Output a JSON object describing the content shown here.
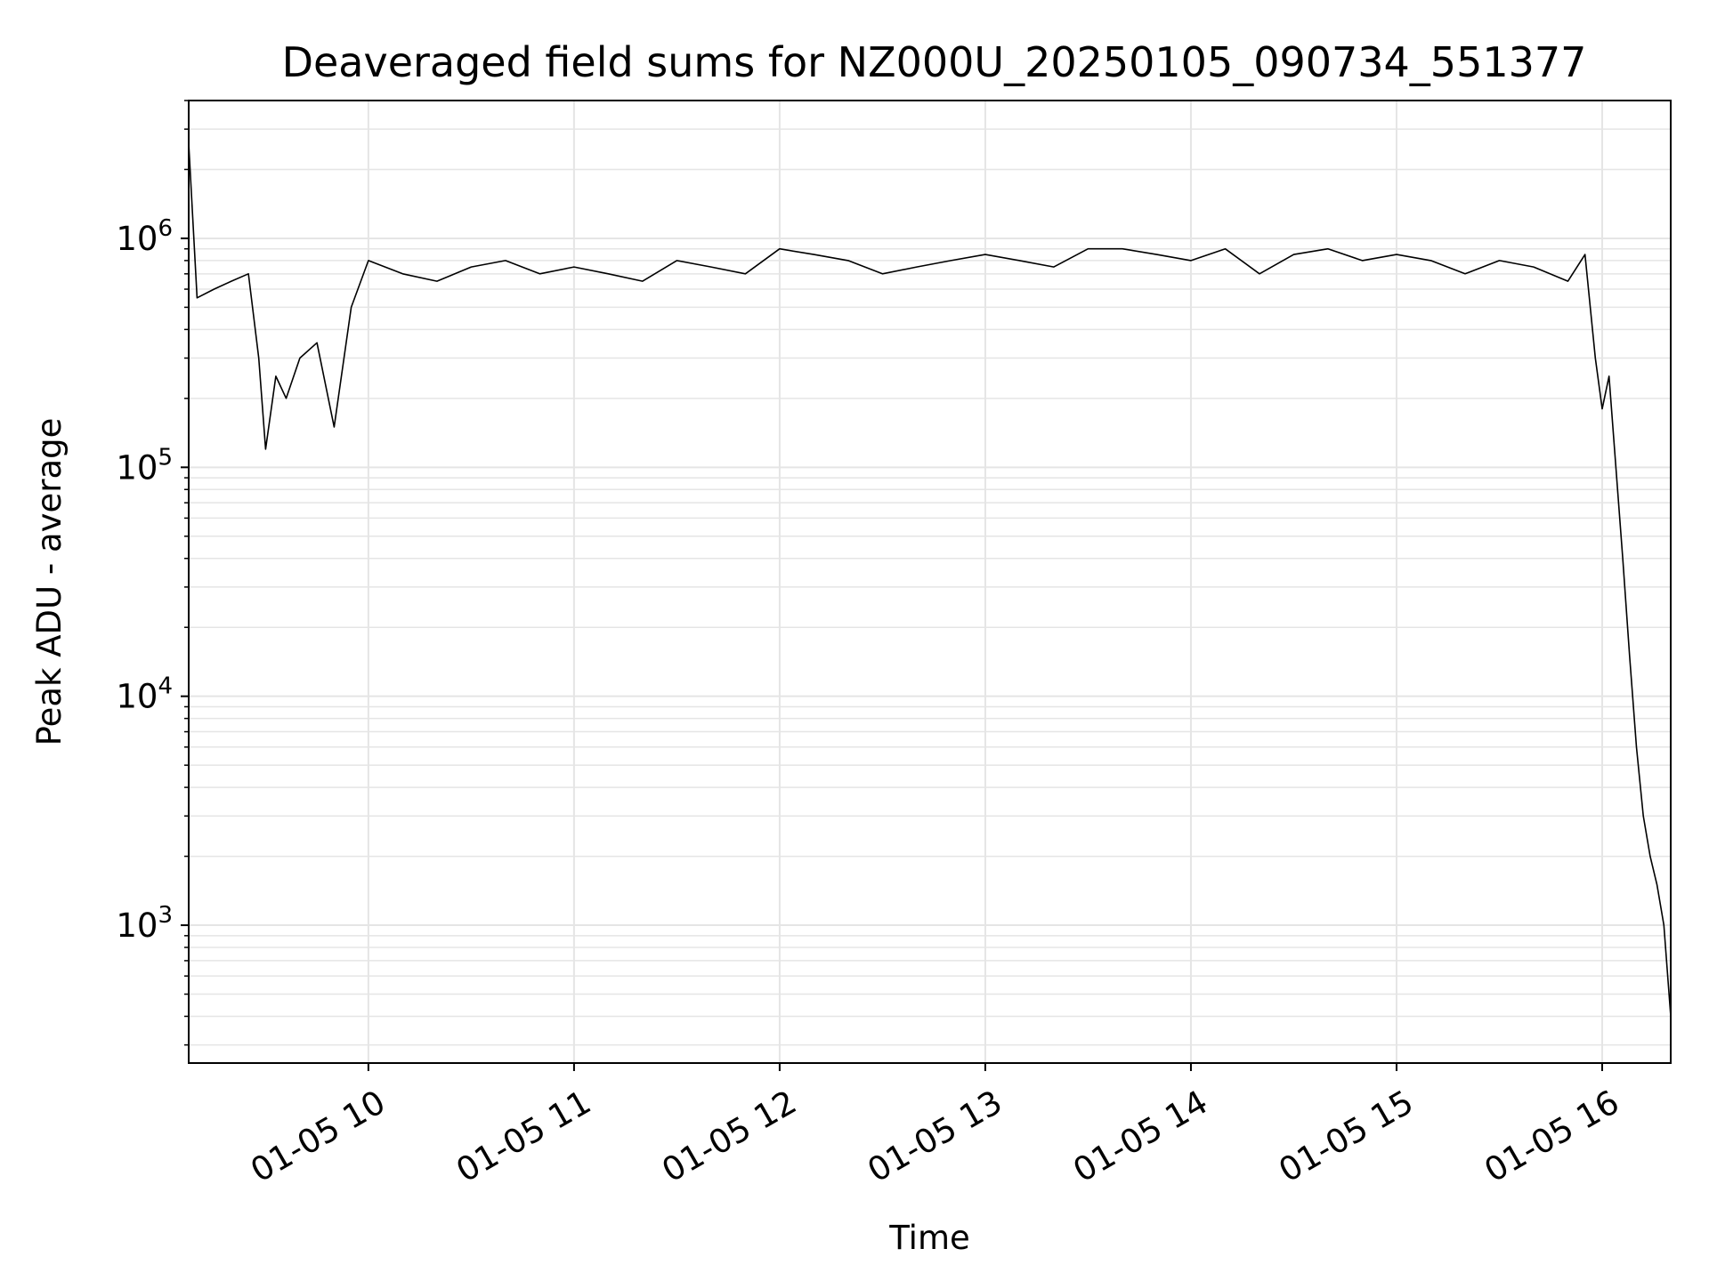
{
  "chart_data": {
    "type": "line",
    "title": "Deaveraged field sums for NZ000U_20250105_090734_551377",
    "xlabel": "Time",
    "ylabel": "Peak ADU - average",
    "yscale": "log",
    "ylim": [
      250,
      4000000
    ],
    "xlim": [
      "2025-01-05 09:07:34",
      "2025-01-05 16:20:00"
    ],
    "grid": true,
    "line_color": "#000000",
    "grid_color": "#e5e5e5",
    "y_major_ticks": [
      {
        "value": 1000,
        "base": "10",
        "exp": "3"
      },
      {
        "value": 10000,
        "base": "10",
        "exp": "4"
      },
      {
        "value": 100000,
        "base": "10",
        "exp": "5"
      },
      {
        "value": 1000000,
        "base": "10",
        "exp": "6"
      }
    ],
    "x_ticks": [
      {
        "value": "2025-01-05 10:00",
        "label": "01-05 10"
      },
      {
        "value": "2025-01-05 11:00",
        "label": "01-05 11"
      },
      {
        "value": "2025-01-05 12:00",
        "label": "01-05 12"
      },
      {
        "value": "2025-01-05 13:00",
        "label": "01-05 13"
      },
      {
        "value": "2025-01-05 14:00",
        "label": "01-05 14"
      },
      {
        "value": "2025-01-05 15:00",
        "label": "01-05 15"
      },
      {
        "value": "2025-01-05 16:00",
        "label": "01-05 16"
      }
    ],
    "series": [
      {
        "x": [
          "2025-01-05 09:07:34",
          "2025-01-05 09:10",
          "2025-01-05 09:15",
          "2025-01-05 09:20",
          "2025-01-05 09:25",
          "2025-01-05 09:28",
          "2025-01-05 09:30",
          "2025-01-05 09:33",
          "2025-01-05 09:36",
          "2025-01-05 09:40",
          "2025-01-05 09:45",
          "2025-01-05 09:50",
          "2025-01-05 09:55",
          "2025-01-05 10:00",
          "2025-01-05 10:10",
          "2025-01-05 10:20",
          "2025-01-05 10:30",
          "2025-01-05 10:40",
          "2025-01-05 10:50",
          "2025-01-05 11:00",
          "2025-01-05 11:10",
          "2025-01-05 11:20",
          "2025-01-05 11:30",
          "2025-01-05 11:40",
          "2025-01-05 11:50",
          "2025-01-05 12:00",
          "2025-01-05 12:10",
          "2025-01-05 12:20",
          "2025-01-05 12:30",
          "2025-01-05 12:40",
          "2025-01-05 12:50",
          "2025-01-05 13:00",
          "2025-01-05 13:10",
          "2025-01-05 13:20",
          "2025-01-05 13:30",
          "2025-01-05 13:40",
          "2025-01-05 13:50",
          "2025-01-05 14:00",
          "2025-01-05 14:10",
          "2025-01-05 14:20",
          "2025-01-05 14:30",
          "2025-01-05 14:40",
          "2025-01-05 14:50",
          "2025-01-05 15:00",
          "2025-01-05 15:10",
          "2025-01-05 15:20",
          "2025-01-05 15:30",
          "2025-01-05 15:40",
          "2025-01-05 15:50",
          "2025-01-05 15:55",
          "2025-01-05 15:58",
          "2025-01-05 16:00",
          "2025-01-05 16:02",
          "2025-01-05 16:04",
          "2025-01-05 16:06",
          "2025-01-05 16:08",
          "2025-01-05 16:10",
          "2025-01-05 16:12",
          "2025-01-05 16:14",
          "2025-01-05 16:16",
          "2025-01-05 16:18",
          "2025-01-05 16:20"
        ],
        "y": [
          2600000,
          550000,
          600000,
          650000,
          700000,
          300000,
          120000,
          250000,
          200000,
          300000,
          350000,
          150000,
          500000,
          800000,
          700000,
          650000,
          750000,
          800000,
          700000,
          750000,
          700000,
          650000,
          800000,
          750000,
          700000,
          900000,
          850000,
          800000,
          700000,
          750000,
          800000,
          850000,
          800000,
          750000,
          900000,
          900000,
          850000,
          800000,
          900000,
          700000,
          850000,
          900000,
          800000,
          850000,
          800000,
          700000,
          800000,
          750000,
          650000,
          850000,
          300000,
          180000,
          250000,
          100000,
          40000,
          15000,
          6000,
          3000,
          2000,
          1500,
          1000,
          400
        ]
      }
    ]
  }
}
